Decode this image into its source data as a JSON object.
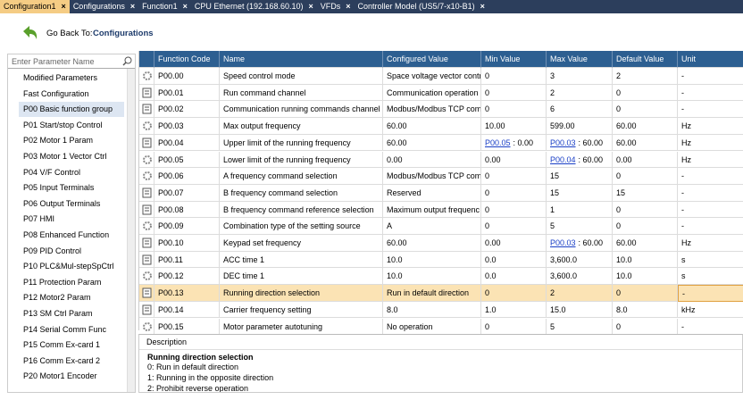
{
  "tabs": [
    "Configuration1",
    "Configurations",
    "Function1",
    "CPU Ethernet (192.168.60.10)",
    "VFDs",
    "Controller Model (US5/7-x10-B1)"
  ],
  "back": {
    "label": "Go Back To:",
    "target": "Configurations"
  },
  "search": {
    "placeholder": "Enter Parameter Name"
  },
  "sidebar": [
    "Modified Parameters",
    "Fast Configuration",
    "P00 Basic function group",
    "P01 Start/stop Control",
    "P02 Motor 1 Param",
    "P03 Motor 1 Vector Ctrl",
    "P04 V/F Control",
    "P05 Input Terminals",
    "P06 Output Terminals",
    "P07 HMI",
    "P08 Enhanced Function",
    "P09 PID Control",
    "P10 PLC&Mul-stepSpCtrl",
    "P11 Protection Param",
    "P12 Motor2 Param",
    "P13 SM Ctrl Param",
    "P14 Serial Comm Func",
    "P15 Comm Ex-card 1",
    "P16 Comm Ex-card 2",
    "P20 Motor1 Encoder"
  ],
  "table": {
    "columns": [
      "Function Code",
      "Name",
      "Configured Value",
      "Min Value",
      "Max Value",
      "Default Value",
      "Unit"
    ],
    "rows": [
      [
        "P00.00",
        "Speed control mode",
        "Space voltage vector contr",
        "0",
        "3",
        "2",
        "-"
      ],
      [
        "P00.01",
        "Run command channel",
        "Communication operation",
        "0",
        "2",
        "0",
        "-"
      ],
      [
        "P00.02",
        "Communication running commands channel",
        "Modbus/Modbus TCP com",
        "0",
        "6",
        "0",
        "-"
      ],
      [
        "P00.03",
        "Max output frequency",
        "60.00",
        "10.00",
        "599.00",
        "60.00",
        "Hz"
      ],
      [
        "P00.04",
        "Upper limit of the running frequency",
        "60.00",
        {
          "link": "P00.05",
          "rest": ": 0.00"
        },
        {
          "link": "P00.03",
          "rest": ": 60.00"
        },
        "60.00",
        "Hz"
      ],
      [
        "P00.05",
        "Lower limit of the running frequency",
        "0.00",
        "0.00",
        {
          "link": "P00.04",
          "rest": ": 60.00"
        },
        "0.00",
        "Hz"
      ],
      [
        "P00.06",
        "A frequency command selection",
        "Modbus/Modbus TCP com",
        "0",
        "15",
        "0",
        "-"
      ],
      [
        "P00.07",
        "B frequency command selection",
        "Reserved",
        "0",
        "15",
        "15",
        "-"
      ],
      [
        "P00.08",
        "B frequency command reference selection",
        "Maximum output frequenc",
        "0",
        "1",
        "0",
        "-"
      ],
      [
        "P00.09",
        "Combination type of the setting source",
        "A",
        "0",
        "5",
        "0",
        "-"
      ],
      [
        "P00.10",
        "Keypad set frequency",
        "60.00",
        "0.00",
        {
          "link": "P00.03",
          "rest": ": 60.00"
        },
        "60.00",
        "Hz"
      ],
      [
        "P00.11",
        "ACC time 1",
        "10.0",
        "0.0",
        "3,600.0",
        "10.0",
        "s"
      ],
      [
        "P00.12",
        "DEC time 1",
        "10.0",
        "0.0",
        "3,600.0",
        "10.0",
        "s"
      ],
      [
        "P00.13",
        "Running direction selection",
        "Run in default direction",
        "0",
        "2",
        "0",
        "-"
      ],
      [
        "P00.14",
        "Carrier frequency setting",
        "8.0",
        "1.0",
        "15.0",
        "8.0",
        "kHz"
      ],
      [
        "P00.15",
        "Motor parameter autotuning",
        "No operation",
        "0",
        "5",
        "0",
        "-"
      ]
    ]
  },
  "description": {
    "title": "Description",
    "heading": "Running direction selection",
    "lines": [
      "0: Run in default direction",
      "1: Running in the opposite direction",
      "2: Prohibit reverse operation"
    ]
  }
}
